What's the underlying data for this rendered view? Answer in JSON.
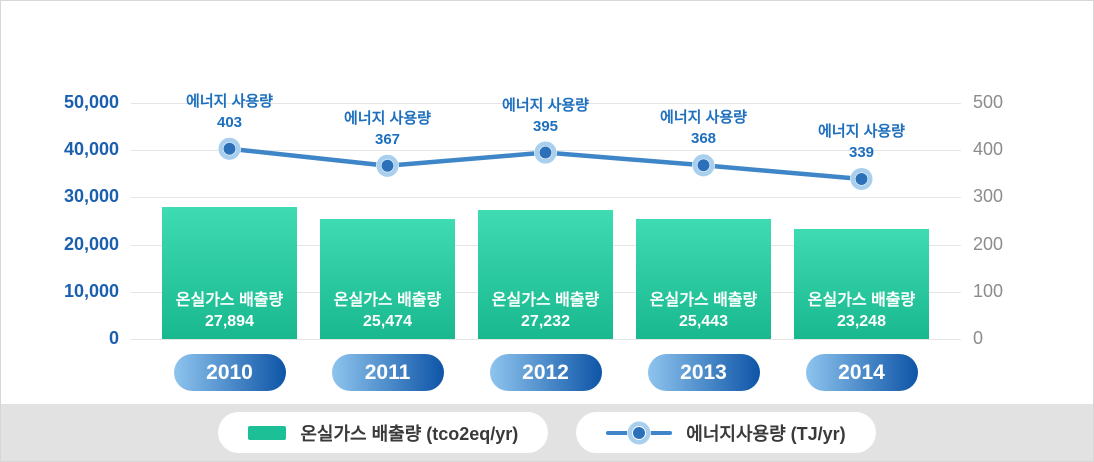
{
  "chart_data": {
    "type": "bar+line",
    "categories": [
      "2010",
      "2011",
      "2012",
      "2013",
      "2014"
    ],
    "series": [
      {
        "name": "온실가스 배출량",
        "type": "bar",
        "unit": "tco2eq/yr",
        "axis": "left",
        "label_prefix": "온실가스 배출량",
        "values": [
          27894,
          25474,
          27232,
          25443,
          23248
        ],
        "value_labels": [
          "27,894",
          "25,474",
          "27,232",
          "25,443",
          "23,248"
        ]
      },
      {
        "name": "에너지 사용량",
        "type": "line",
        "unit": "TJ/yr",
        "axis": "right",
        "label_prefix": "에너지 사용량",
        "values": [
          403,
          367,
          395,
          368,
          339
        ],
        "value_labels": [
          "403",
          "367",
          "395",
          "368",
          "339"
        ]
      }
    ],
    "left_axis": {
      "tick_labels": [
        "50,000",
        "40,000",
        "30,000",
        "20,000",
        "10,000",
        "0"
      ],
      "min": 0,
      "max": 50000
    },
    "right_axis": {
      "tick_labels": [
        "500",
        "400",
        "300",
        "200",
        "100",
        "0"
      ],
      "min": 0,
      "max": 500
    },
    "grid": true,
    "legend_position": "bottom"
  },
  "legend": {
    "bar_label": "온실가스 배출량 (tco2eq/yr)",
    "line_label": "에너지사용량 (TJ/yr)"
  },
  "colors": {
    "card_border": "#d7d7d7",
    "grid": "#e5e5e5",
    "left_axis_text": "#1c5fae",
    "right_axis_text": "#8c8c8c",
    "annotation_text": "#1d6fbe",
    "bar_gradient_top": "#3fdbb2",
    "bar_gradient_bottom": "#19b88f",
    "line_color": "#3e86c8",
    "marker_dot": "#2b70b8",
    "marker_ring": "#a9cfee",
    "pill_gradient_left": "#8ec4ee",
    "pill_gradient_right": "#0e55a7",
    "legend_bg": "#e2e2e2",
    "legend_text": "#3a3a3a",
    "legend_swatch": "#1dbf97"
  }
}
